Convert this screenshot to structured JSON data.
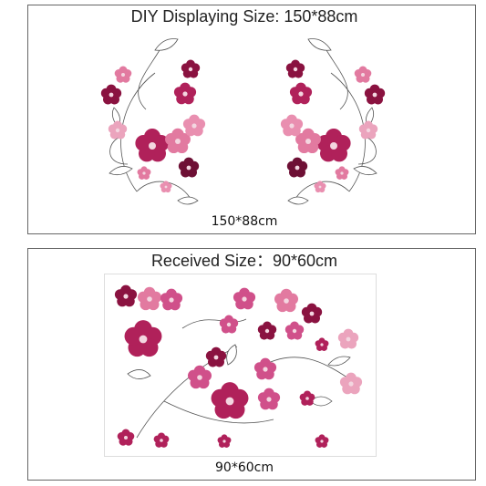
{
  "top_panel": {
    "title": "DIY Displaying Size: 150*88cm",
    "caption": "150*88cm"
  },
  "bottom_panel": {
    "title": "Received Size：90*60cm",
    "caption": "90*60cm"
  }
}
